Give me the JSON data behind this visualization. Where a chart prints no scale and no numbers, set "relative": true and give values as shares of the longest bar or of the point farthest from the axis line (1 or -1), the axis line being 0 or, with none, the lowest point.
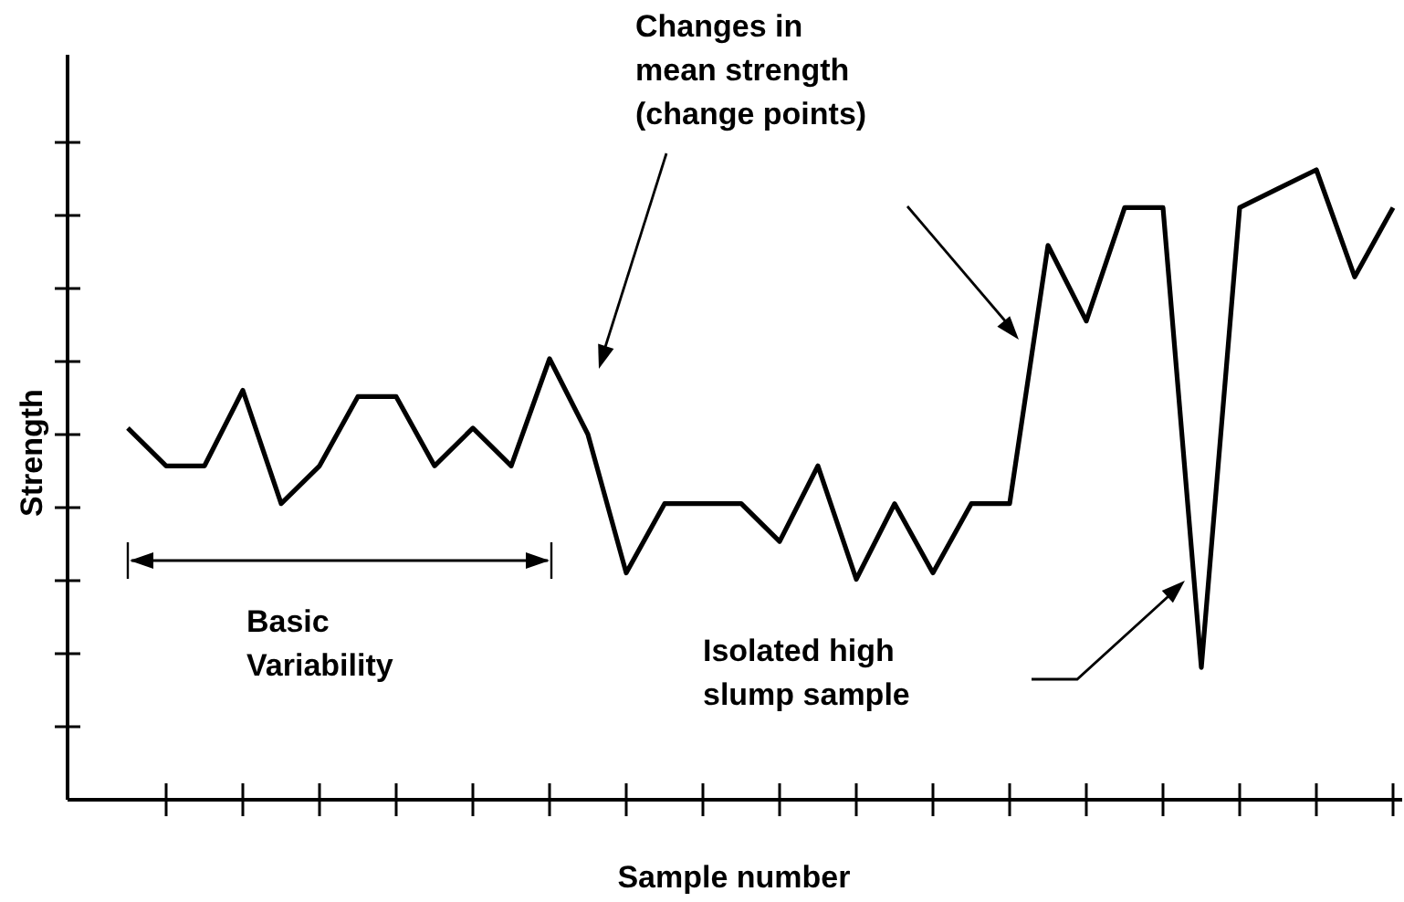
{
  "chart_data": {
    "type": "line",
    "relative": true,
    "xlabel": "Sample number",
    "ylabel": "Strength",
    "categories": [
      null,
      null,
      null,
      null,
      null,
      null,
      null,
      null,
      null,
      null,
      null,
      null,
      null,
      null,
      null,
      null,
      null,
      null,
      null,
      null,
      null,
      null,
      null,
      null,
      null,
      null,
      null,
      null,
      null,
      null,
      null,
      null,
      null,
      null
    ],
    "series": [
      {
        "color": "#000000",
        "values": [
          0.59,
          0.53,
          0.53,
          0.65,
          0.47,
          0.53,
          0.64,
          0.64,
          0.53,
          0.59,
          0.53,
          0.7,
          0.58,
          0.36,
          0.47,
          0.47,
          0.47,
          0.41,
          0.53,
          0.35,
          0.47,
          0.36,
          0.47,
          0.47,
          0.88,
          0.76,
          0.94,
          0.94,
          0.21,
          0.94,
          0.97,
          1,
          0.83,
          0.94
        ]
      }
    ],
    "annotations": [
      "Changes in\nmean strength\n(change points)",
      "Basic\nVariability",
      "Isolated high\nslump sample"
    ],
    "grid": false,
    "marker": "none",
    "line_style": "solid"
  }
}
